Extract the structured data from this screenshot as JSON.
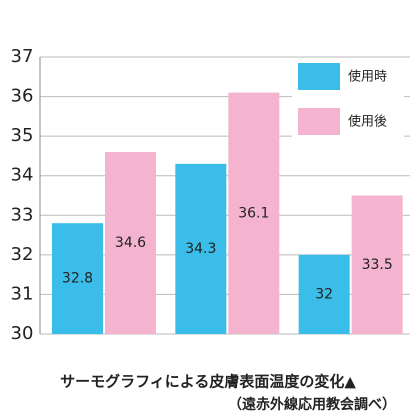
{
  "chart_data": {
    "type": "bar",
    "title": "サーモグラフィによる皮膚表面温度の変化▲",
    "subtitle": "（遠赤外線応用教会調べ）",
    "series": [
      {
        "name": "使用時",
        "color": "#3bbde9",
        "values": [
          32.8,
          34.3,
          32
        ]
      },
      {
        "name": "使用後",
        "color": "#f4b3cf",
        "values": [
          34.6,
          36.1,
          33.5
        ]
      }
    ],
    "ylim": [
      30,
      37
    ],
    "yticks": [
      30,
      31,
      32,
      33,
      34,
      35,
      36,
      37
    ],
    "grid": true,
    "legend": "top-right",
    "data_labels": true
  }
}
